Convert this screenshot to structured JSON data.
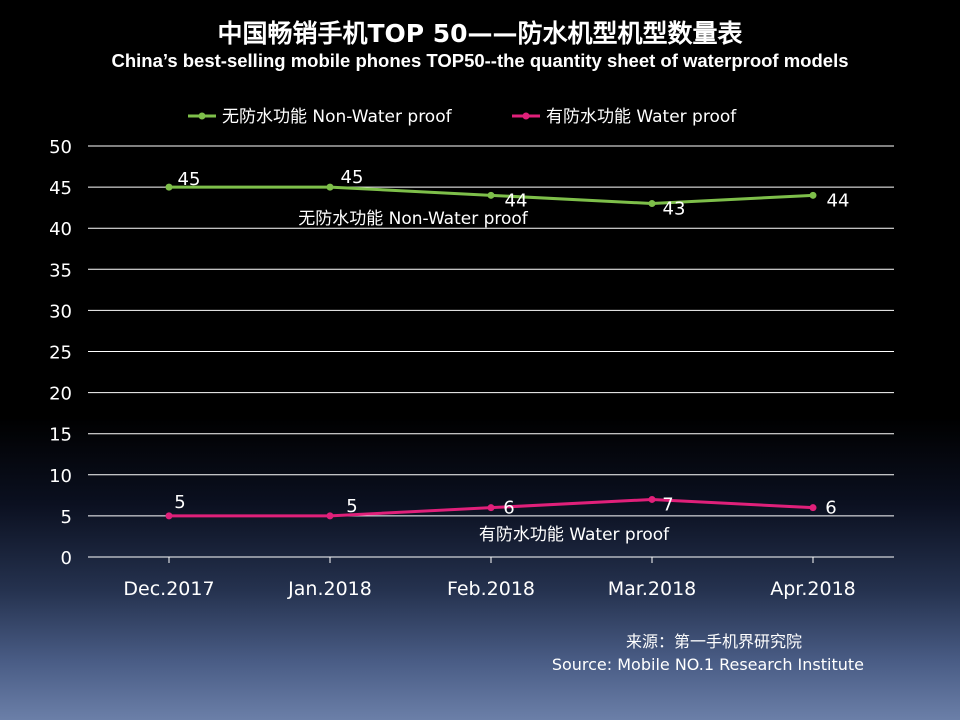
{
  "title_zh": "中国畅销手机TOP 50——防水机型机型数量表",
  "title_en": "China’s best-selling mobile phones TOP50--the quantity sheet of waterproof models",
  "source_zh": "来源：第一手机界研究院",
  "source_en": "Source: Mobile NO.1 Research Institute",
  "chart_data": {
    "type": "line",
    "categories": [
      "Dec.2017",
      "Jan.2018",
      "Feb.2018",
      "Mar.2018",
      "Apr.2018"
    ],
    "ylim": [
      0,
      50
    ],
    "yticks": [
      0,
      5,
      10,
      15,
      20,
      25,
      30,
      35,
      40,
      45,
      50
    ],
    "grid": true,
    "legend_position": "top",
    "series": [
      {
        "name": "无防水功能  Non-Water proof",
        "color": "#7ebf4a",
        "values": [
          45,
          45,
          44,
          43,
          44
        ],
        "series_label": "无防水功能   Non-Water proof"
      },
      {
        "name": "有防水功能  Water proof",
        "color": "#e0207a",
        "values": [
          5,
          5,
          6,
          7,
          6
        ],
        "series_label": "有防水功能    Water proof"
      }
    ]
  }
}
